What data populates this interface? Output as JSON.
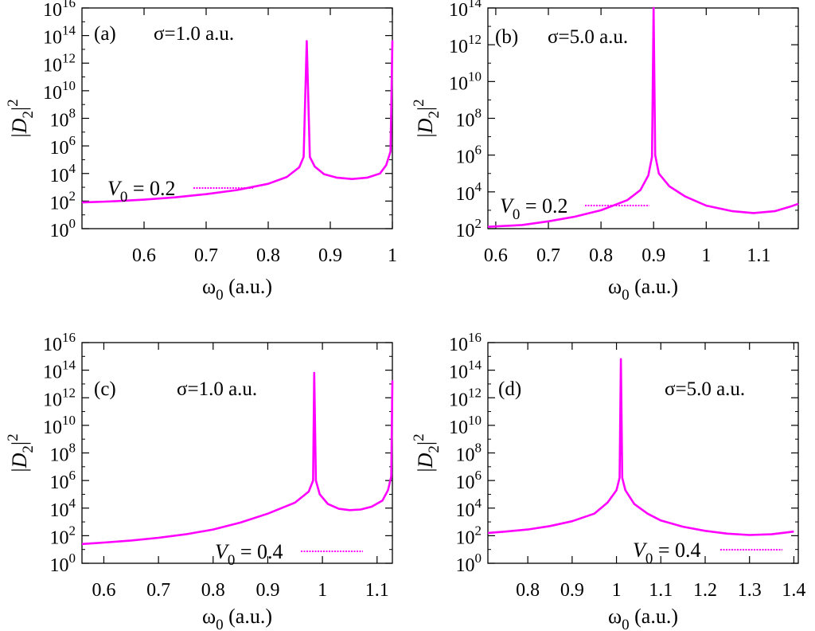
{
  "chart_data": [
    {
      "type": "line",
      "panel_label": "(a)",
      "sigma_label": "σ=1.0 a.u.",
      "series": [
        {
          "name": "V0 = 0.2",
          "legend_main": "V",
          "legend_sub": "0",
          "legend_rest": " = 0.2",
          "color": "#ff00ff",
          "peaks": [
            {
              "x": 0.862,
              "y": 13.6
            },
            {
              "x": 1.0,
              "y": 13.6
            }
          ],
          "curve_points": [
            [
              0.5,
              1.9
            ],
            [
              0.55,
              1.98
            ],
            [
              0.6,
              2.1
            ],
            [
              0.65,
              2.27
            ],
            [
              0.7,
              2.5
            ],
            [
              0.75,
              2.8
            ],
            [
              0.8,
              3.25
            ],
            [
              0.83,
              3.75
            ],
            [
              0.85,
              4.45
            ],
            [
              0.857,
              5.2
            ],
            [
              0.862,
              13.6
            ],
            [
              0.867,
              5.2
            ],
            [
              0.875,
              4.5
            ],
            [
              0.89,
              3.95
            ],
            [
              0.91,
              3.7
            ],
            [
              0.935,
              3.6
            ],
            [
              0.96,
              3.7
            ],
            [
              0.98,
              4.0
            ],
            [
              0.99,
              4.6
            ],
            [
              0.997,
              5.6
            ],
            [
              1.0,
              13.6
            ]
          ]
        }
      ],
      "xlabel_main": "ω",
      "xlabel_sub": "0",
      "xlabel_rest": " (a.u.)",
      "ylabel_main": "|D",
      "ylabel_sub": "2",
      "ylabel_rest": "|",
      "ylabel_sup": "2",
      "x_ticks": [
        "0.6",
        "0.7",
        "0.8",
        "0.9",
        "1"
      ],
      "x_tick_values": [
        0.6,
        0.7,
        0.8,
        0.9,
        1.0
      ],
      "xlim": [
        0.5,
        1.0
      ],
      "y_tick_exponents": [
        "0",
        "2",
        "4",
        "6",
        "8",
        "10",
        "12",
        "14",
        "16"
      ],
      "y_tick_values": [
        0,
        2,
        4,
        6,
        8,
        10,
        12,
        14,
        16
      ],
      "ylim": [
        0,
        16
      ],
      "y_scale": "log",
      "legend_position": "left"
    },
    {
      "type": "line",
      "panel_label": "(b)",
      "sigma_label": "σ=5.0 a.u.",
      "series": [
        {
          "name": "V0 = 0.2",
          "legend_main": "V",
          "legend_sub": "0",
          "legend_rest": " = 0.2",
          "color": "#ff00ff",
          "peaks": [
            {
              "x": 0.9,
              "y": 14.0
            }
          ],
          "curve_points": [
            [
              0.585,
              2.1
            ],
            [
              0.65,
              2.2
            ],
            [
              0.7,
              2.4
            ],
            [
              0.75,
              2.65
            ],
            [
              0.8,
              3.0
            ],
            [
              0.85,
              3.55
            ],
            [
              0.875,
              4.1
            ],
            [
              0.89,
              4.9
            ],
            [
              0.897,
              5.9
            ],
            [
              0.9,
              14.0
            ],
            [
              0.903,
              6.0
            ],
            [
              0.91,
              5.0
            ],
            [
              0.93,
              4.3
            ],
            [
              0.96,
              3.75
            ],
            [
              1.0,
              3.25
            ],
            [
              1.05,
              2.95
            ],
            [
              1.09,
              2.85
            ],
            [
              1.13,
              2.95
            ],
            [
              1.16,
              3.2
            ],
            [
              1.175,
              3.35
            ]
          ]
        }
      ],
      "xlabel_main": "ω",
      "xlabel_sub": "0",
      "xlabel_rest": " (a.u.)",
      "ylabel_main": "|D",
      "ylabel_sub": "2",
      "ylabel_rest": "|",
      "ylabel_sup": "2",
      "x_ticks": [
        "0.6",
        "0.7",
        "0.8",
        "0.9",
        "1",
        "1.1"
      ],
      "x_tick_values": [
        0.6,
        0.7,
        0.8,
        0.9,
        1.0,
        1.1
      ],
      "xlim": [
        0.585,
        1.175
      ],
      "y_tick_exponents": [
        "2",
        "4",
        "6",
        "8",
        "10",
        "12",
        "14"
      ],
      "y_tick_values": [
        2,
        4,
        6,
        8,
        10,
        12,
        14
      ],
      "ylim": [
        2,
        14
      ],
      "y_scale": "log",
      "legend_position": "left"
    },
    {
      "type": "line",
      "panel_label": "(c)",
      "sigma_label": "σ=1.0 a.u.",
      "series": [
        {
          "name": "V0 = 0.4",
          "legend_main": "V",
          "legend_sub": "0",
          "legend_rest": " = 0.4",
          "color": "#ff00ff",
          "peaks": [
            {
              "x": 0.985,
              "y": 13.8
            },
            {
              "x": 1.128,
              "y": 13.2
            }
          ],
          "curve_points": [
            [
              0.56,
              1.4
            ],
            [
              0.6,
              1.5
            ],
            [
              0.65,
              1.65
            ],
            [
              0.7,
              1.85
            ],
            [
              0.75,
              2.1
            ],
            [
              0.8,
              2.45
            ],
            [
              0.85,
              2.95
            ],
            [
              0.9,
              3.6
            ],
            [
              0.95,
              4.4
            ],
            [
              0.975,
              5.2
            ],
            [
              0.983,
              6.0
            ],
            [
              0.985,
              13.8
            ],
            [
              0.988,
              6.0
            ],
            [
              0.995,
              5.0
            ],
            [
              1.01,
              4.3
            ],
            [
              1.03,
              3.95
            ],
            [
              1.05,
              3.85
            ],
            [
              1.07,
              3.9
            ],
            [
              1.09,
              4.1
            ],
            [
              1.11,
              4.55
            ],
            [
              1.12,
              5.3
            ],
            [
              1.126,
              6.3
            ],
            [
              1.128,
              13.2
            ]
          ]
        }
      ],
      "xlabel_main": "ω",
      "xlabel_sub": "0",
      "xlabel_rest": " (a.u.)",
      "ylabel_main": "|D",
      "ylabel_sub": "2",
      "ylabel_rest": "|",
      "ylabel_sup": "2",
      "x_ticks": [
        "0.6",
        "0.7",
        "0.8",
        "0.9",
        "1",
        "1.1"
      ],
      "x_tick_values": [
        0.6,
        0.7,
        0.8,
        0.9,
        1.0,
        1.1
      ],
      "xlim": [
        0.56,
        1.128
      ],
      "y_tick_exponents": [
        "0",
        "2",
        "4",
        "6",
        "8",
        "10",
        "12",
        "14",
        "16"
      ],
      "y_tick_values": [
        0,
        2,
        4,
        6,
        8,
        10,
        12,
        14,
        16
      ],
      "ylim": [
        0,
        16
      ],
      "y_scale": "log",
      "legend_position": "bottom"
    },
    {
      "type": "line",
      "panel_label": "(d)",
      "sigma_label": "σ=5.0 a.u.",
      "series": [
        {
          "name": "V0 = 0.4",
          "legend_main": "V",
          "legend_sub": "0",
          "legend_rest": " = 0.4",
          "color": "#ff00ff",
          "peaks": [
            {
              "x": 1.01,
              "y": 14.8
            }
          ],
          "curve_points": [
            [
              0.71,
              2.2
            ],
            [
              0.75,
              2.3
            ],
            [
              0.8,
              2.45
            ],
            [
              0.85,
              2.7
            ],
            [
              0.9,
              3.05
            ],
            [
              0.95,
              3.6
            ],
            [
              0.98,
              4.4
            ],
            [
              1.0,
              5.3
            ],
            [
              1.007,
              6.2
            ],
            [
              1.01,
              14.8
            ],
            [
              1.013,
              6.2
            ],
            [
              1.02,
              5.3
            ],
            [
              1.04,
              4.3
            ],
            [
              1.07,
              3.6
            ],
            [
              1.1,
              3.1
            ],
            [
              1.15,
              2.65
            ],
            [
              1.2,
              2.35
            ],
            [
              1.25,
              2.15
            ],
            [
              1.3,
              2.05
            ],
            [
              1.35,
              2.1
            ],
            [
              1.4,
              2.3
            ]
          ]
        }
      ],
      "xlabel_main": "ω",
      "xlabel_sub": "0",
      "xlabel_rest": " (a.u.)",
      "ylabel_main": "|D",
      "ylabel_sub": "2",
      "ylabel_rest": "|",
      "ylabel_sup": "2",
      "x_ticks": [
        "0.8",
        "0.9",
        "1",
        "1.1",
        "1.2",
        "1.3",
        "1.4"
      ],
      "x_tick_values": [
        0.8,
        0.9,
        1.0,
        1.1,
        1.2,
        1.3,
        1.4
      ],
      "xlim": [
        0.71,
        1.41
      ],
      "y_tick_exponents": [
        "0",
        "2",
        "4",
        "6",
        "8",
        "10",
        "12",
        "14",
        "16"
      ],
      "y_tick_values": [
        0,
        2,
        4,
        6,
        8,
        10,
        12,
        14,
        16
      ],
      "ylim": [
        0,
        16
      ],
      "y_scale": "log",
      "legend_position": "bottom"
    }
  ]
}
